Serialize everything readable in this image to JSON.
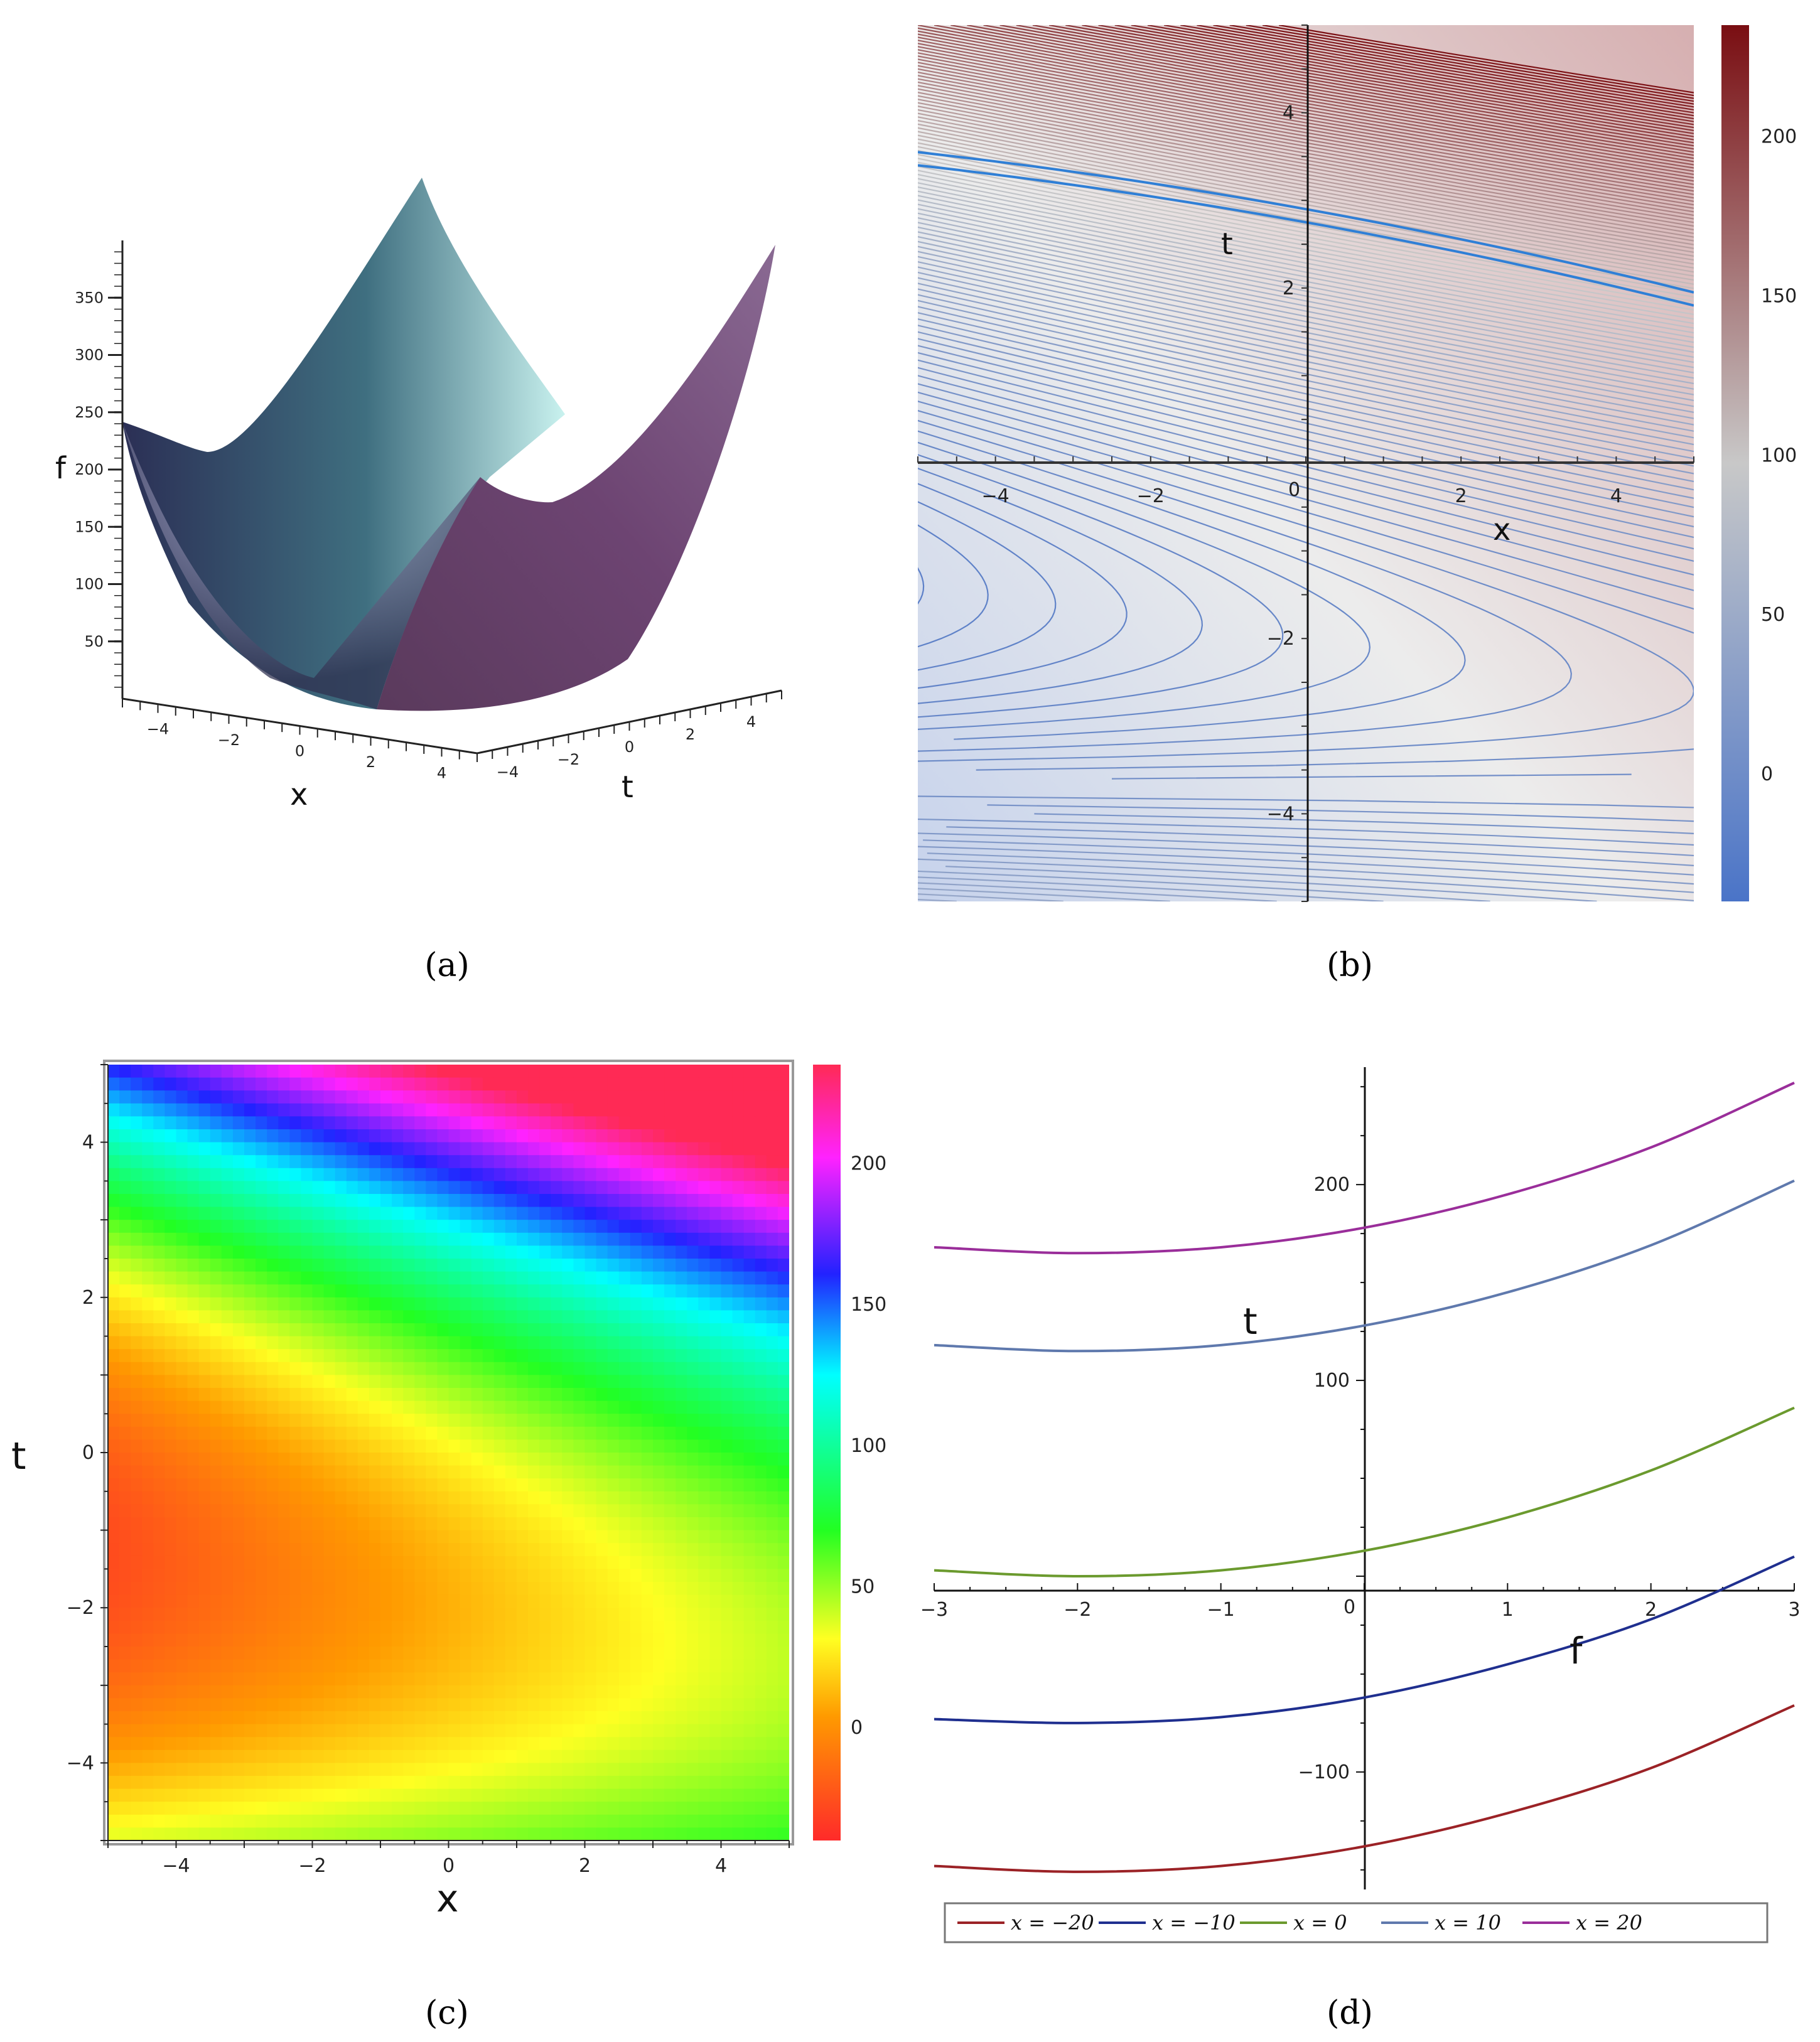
{
  "captions": [
    "(a)",
    "(b)",
    "(c)",
    "(d)"
  ],
  "chart_data": [
    {
      "panel": "(a)",
      "type": "surface3d",
      "xlabel": "x",
      "ylabel": "t",
      "zlabel": "f",
      "xlim": [
        -5,
        5
      ],
      "ylim": [
        -5,
        5
      ],
      "x_ticks": [
        -4,
        -2,
        0,
        2,
        4
      ],
      "t_ticks": [
        -4,
        -2,
        0,
        2,
        4
      ],
      "z_ticks": [
        50,
        100,
        150,
        200,
        250,
        300,
        350
      ],
      "colors": [
        "#2b2f55",
        "#3d6e80",
        "#bff0ee",
        "#6a3f6b"
      ]
    },
    {
      "panel": "(b)",
      "type": "contour",
      "xlabel": "x",
      "ylabel": "t",
      "xlim": [
        -5,
        5
      ],
      "ylim": [
        -5,
        5
      ],
      "x_ticks": [
        -4,
        -2,
        0,
        2,
        4
      ],
      "t_ticks": [
        -4,
        -2,
        2,
        4
      ],
      "origin_label": "0",
      "colorbar": {
        "ticks": [
          0,
          50,
          100,
          150,
          200
        ],
        "range": [
          -40,
          235
        ],
        "colors": [
          "#4a74c8",
          "#c8c8c8",
          "#7a0e12"
        ]
      }
    },
    {
      "panel": "(c)",
      "type": "heatmap",
      "xlabel": "x",
      "ylabel": "t",
      "xlim": [
        -5,
        5
      ],
      "ylim": [
        -5,
        5
      ],
      "x_ticks": [
        -4,
        -2,
        0,
        2,
        4
      ],
      "t_ticks": [
        4,
        2,
        0,
        -2,
        -4
      ],
      "colorbar": {
        "ticks": [
          0,
          50,
          100,
          150,
          200
        ],
        "range": [
          -40,
          235
        ]
      }
    },
    {
      "panel": "(d)",
      "type": "line",
      "xlabel": "f",
      "ylabel": "t",
      "xlim": [
        -3,
        3
      ],
      "ylim": [
        -160,
        260
      ],
      "x_ticks": [
        -3,
        -2,
        -1,
        0,
        1,
        2,
        3
      ],
      "y_ticks": [
        200,
        100,
        -100
      ],
      "origin_label": "0",
      "legend_position": "bottom",
      "series": [
        {
          "name": "x = −20",
          "color": "#9b2226",
          "points": [
            [
              -3,
              -148
            ],
            [
              -2,
              -151
            ],
            [
              -1,
              -148
            ],
            [
              0,
              -138
            ],
            [
              1,
              -121
            ],
            [
              2,
              -98
            ],
            [
              3,
              -66
            ]
          ]
        },
        {
          "name": "x = −10",
          "color": "#1f2f8f",
          "points": [
            [
              -3,
              -73
            ],
            [
              -2,
              -75
            ],
            [
              -1,
              -72
            ],
            [
              0,
              -62
            ],
            [
              1,
              -45
            ],
            [
              2,
              -22
            ],
            [
              3,
              10
            ]
          ]
        },
        {
          "name": "x = 0",
          "color": "#6b9a2e",
          "points": [
            [
              -3,
              3
            ],
            [
              -2,
              0
            ],
            [
              -1,
              3
            ],
            [
              0,
              13
            ],
            [
              1,
              30
            ],
            [
              2,
              54
            ],
            [
              3,
              86
            ]
          ]
        },
        {
          "name": "x = 10",
          "color": "#5f79ad",
          "points": [
            [
              -3,
              118
            ],
            [
              -2,
              115
            ],
            [
              -1,
              118
            ],
            [
              0,
              128
            ],
            [
              1,
              145
            ],
            [
              2,
              169
            ],
            [
              3,
              202
            ]
          ]
        },
        {
          "name": "x = 20",
          "color": "#9a2e9a",
          "points": [
            [
              -3,
              168
            ],
            [
              -2,
              165
            ],
            [
              -1,
              168
            ],
            [
              0,
              178
            ],
            [
              1,
              195
            ],
            [
              2,
              219
            ],
            [
              3,
              252
            ]
          ]
        }
      ]
    }
  ]
}
